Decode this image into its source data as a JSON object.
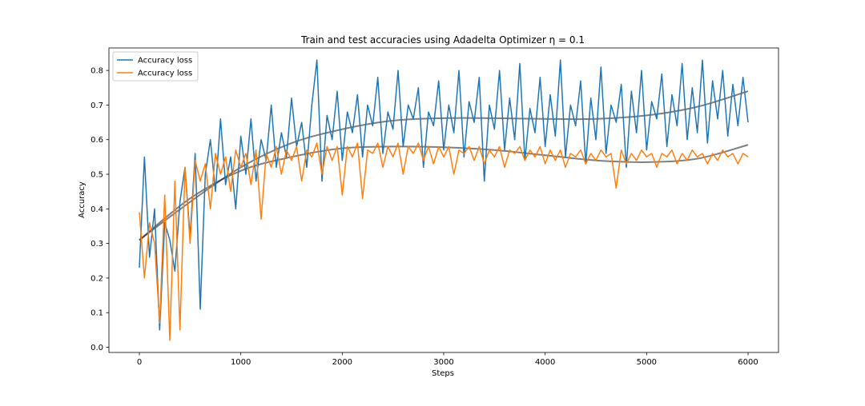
{
  "chart_data": {
    "type": "line",
    "title": "Train and test accuracies using Adadelta Optimizer η = 0.1",
    "xlabel": "Steps",
    "ylabel": "Accuracy",
    "xlim": [
      -300,
      6300
    ],
    "ylim": [
      -0.015,
      0.865
    ],
    "xticks": [
      0,
      1000,
      2000,
      3000,
      4000,
      5000,
      6000
    ],
    "yticks": [
      0.0,
      0.1,
      0.2,
      0.3,
      0.4,
      0.5,
      0.6,
      0.7,
      0.8
    ],
    "xtick_labels": [
      "0",
      "1000",
      "2000",
      "3000",
      "4000",
      "5000",
      "6000"
    ],
    "ytick_labels": [
      "0.0",
      "0.1",
      "0.2",
      "0.3",
      "0.4",
      "0.5",
      "0.6",
      "0.7",
      "0.8"
    ],
    "grid": false,
    "legend_position": "top-left",
    "colors": {
      "train": "#1f77b4",
      "test": "#ff7f0e",
      "trend": "#000000"
    },
    "series": [
      {
        "name": "Accuracy loss",
        "color": "#1f77b4",
        "x": [
          0,
          50,
          100,
          150,
          200,
          250,
          300,
          350,
          400,
          450,
          500,
          550,
          600,
          650,
          700,
          750,
          800,
          850,
          900,
          950,
          1000,
          1050,
          1100,
          1150,
          1200,
          1250,
          1300,
          1350,
          1400,
          1450,
          1500,
          1550,
          1600,
          1650,
          1700,
          1750,
          1800,
          1850,
          1900,
          1950,
          2000,
          2050,
          2100,
          2150,
          2200,
          2250,
          2300,
          2350,
          2400,
          2450,
          2500,
          2550,
          2600,
          2650,
          2700,
          2750,
          2800,
          2850,
          2900,
          2950,
          3000,
          3050,
          3100,
          3150,
          3200,
          3250,
          3300,
          3350,
          3400,
          3450,
          3500,
          3550,
          3600,
          3650,
          3700,
          3750,
          3800,
          3850,
          3900,
          3950,
          4000,
          4050,
          4100,
          4150,
          4200,
          4250,
          4300,
          4350,
          4400,
          4450,
          4500,
          4550,
          4600,
          4650,
          4700,
          4750,
          4800,
          4850,
          4900,
          4950,
          5000,
          5050,
          5100,
          5150,
          5200,
          5250,
          5300,
          5350,
          5400,
          5450,
          5500,
          5550,
          5600,
          5650,
          5700,
          5750,
          5800,
          5850,
          5900,
          5950,
          6000
        ],
        "values": [
          0.23,
          0.55,
          0.26,
          0.4,
          0.05,
          0.36,
          0.31,
          0.22,
          0.42,
          0.52,
          0.32,
          0.56,
          0.11,
          0.5,
          0.6,
          0.45,
          0.66,
          0.47,
          0.55,
          0.4,
          0.61,
          0.5,
          0.66,
          0.48,
          0.6,
          0.54,
          0.7,
          0.52,
          0.62,
          0.55,
          0.72,
          0.58,
          0.65,
          0.52,
          0.7,
          0.83,
          0.48,
          0.67,
          0.6,
          0.74,
          0.54,
          0.68,
          0.62,
          0.73,
          0.55,
          0.7,
          0.64,
          0.78,
          0.56,
          0.68,
          0.63,
          0.8,
          0.58,
          0.7,
          0.66,
          0.75,
          0.52,
          0.68,
          0.64,
          0.77,
          0.57,
          0.7,
          0.62,
          0.8,
          0.55,
          0.71,
          0.65,
          0.78,
          0.48,
          0.7,
          0.63,
          0.8,
          0.57,
          0.72,
          0.6,
          0.82,
          0.54,
          0.69,
          0.62,
          0.78,
          0.58,
          0.73,
          0.61,
          0.83,
          0.55,
          0.7,
          0.64,
          0.77,
          0.53,
          0.72,
          0.6,
          0.81,
          0.56,
          0.7,
          0.65,
          0.76,
          0.52,
          0.74,
          0.62,
          0.8,
          0.57,
          0.71,
          0.66,
          0.79,
          0.58,
          0.73,
          0.64,
          0.82,
          0.6,
          0.75,
          0.62,
          0.83,
          0.59,
          0.77,
          0.66,
          0.8,
          0.61,
          0.76,
          0.64,
          0.78,
          0.65
        ]
      },
      {
        "name": "Accuracy loss",
        "color": "#ff7f0e",
        "x": [
          0,
          50,
          100,
          150,
          200,
          250,
          300,
          350,
          400,
          450,
          500,
          550,
          600,
          650,
          700,
          750,
          800,
          850,
          900,
          950,
          1000,
          1050,
          1100,
          1150,
          1200,
          1250,
          1300,
          1350,
          1400,
          1450,
          1500,
          1550,
          1600,
          1650,
          1700,
          1750,
          1800,
          1850,
          1900,
          1950,
          2000,
          2050,
          2100,
          2150,
          2200,
          2250,
          2300,
          2350,
          2400,
          2450,
          2500,
          2550,
          2600,
          2650,
          2700,
          2750,
          2800,
          2850,
          2900,
          2950,
          3000,
          3050,
          3100,
          3150,
          3200,
          3250,
          3300,
          3350,
          3400,
          3450,
          3500,
          3550,
          3600,
          3650,
          3700,
          3750,
          3800,
          3850,
          3900,
          3950,
          4000,
          4050,
          4100,
          4150,
          4200,
          4250,
          4300,
          4350,
          4400,
          4450,
          4500,
          4550,
          4600,
          4650,
          4700,
          4750,
          4800,
          4850,
          4900,
          4950,
          5000,
          5050,
          5100,
          5150,
          5200,
          5250,
          5300,
          5350,
          5400,
          5450,
          5500,
          5550,
          5600,
          5650,
          5700,
          5750,
          5800,
          5850,
          5900,
          5950,
          6000
        ],
        "values": [
          0.39,
          0.2,
          0.36,
          0.3,
          0.07,
          0.44,
          0.02,
          0.48,
          0.05,
          0.52,
          0.3,
          0.54,
          0.48,
          0.53,
          0.4,
          0.56,
          0.5,
          0.55,
          0.45,
          0.57,
          0.52,
          0.56,
          0.47,
          0.57,
          0.37,
          0.56,
          0.52,
          0.58,
          0.5,
          0.57,
          0.54,
          0.58,
          0.48,
          0.57,
          0.55,
          0.59,
          0.5,
          0.58,
          0.54,
          0.58,
          0.44,
          0.58,
          0.55,
          0.59,
          0.43,
          0.57,
          0.56,
          0.59,
          0.52,
          0.58,
          0.55,
          0.59,
          0.5,
          0.58,
          0.56,
          0.59,
          0.54,
          0.58,
          0.53,
          0.58,
          0.55,
          0.58,
          0.5,
          0.57,
          0.56,
          0.58,
          0.54,
          0.58,
          0.53,
          0.57,
          0.55,
          0.58,
          0.52,
          0.57,
          0.56,
          0.58,
          0.54,
          0.57,
          0.55,
          0.58,
          0.53,
          0.57,
          0.54,
          0.57,
          0.52,
          0.56,
          0.55,
          0.57,
          0.53,
          0.56,
          0.54,
          0.57,
          0.55,
          0.56,
          0.46,
          0.57,
          0.53,
          0.56,
          0.54,
          0.57,
          0.55,
          0.56,
          0.52,
          0.56,
          0.55,
          0.57,
          0.53,
          0.56,
          0.54,
          0.57,
          0.55,
          0.56,
          0.53,
          0.56,
          0.54,
          0.57,
          0.55,
          0.56,
          0.53,
          0.56,
          0.55
        ]
      }
    ],
    "trend_lines": [
      {
        "x": [
          0,
          500,
          1000,
          1500,
          2000,
          2500,
          3000,
          3500,
          4000,
          4500,
          5000,
          5500,
          6000
        ],
        "values": [
          0.31,
          0.42,
          0.52,
          0.59,
          0.63,
          0.655,
          0.662,
          0.662,
          0.66,
          0.66,
          0.67,
          0.695,
          0.74
        ]
      },
      {
        "x": [
          0,
          500,
          1000,
          1500,
          2000,
          2500,
          3000,
          3500,
          4000,
          4500,
          5000,
          5500,
          6000
        ],
        "values": [
          0.31,
          0.43,
          0.51,
          0.55,
          0.575,
          0.58,
          0.578,
          0.57,
          0.555,
          0.54,
          0.535,
          0.545,
          0.585
        ]
      }
    ]
  }
}
